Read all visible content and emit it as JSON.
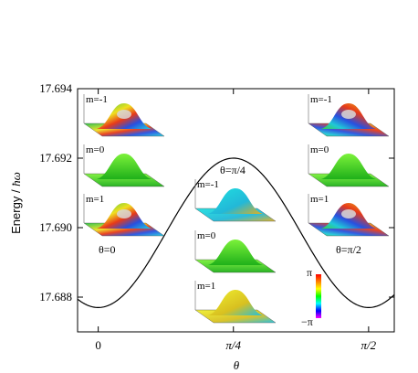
{
  "chart_data": {
    "type": "line",
    "xlabel": "θ",
    "ylabel_text": "Energy / ",
    "ylabel_unit": "ħω",
    "xlim": [
      -0.12,
      1.72
    ],
    "ylim": [
      17.687,
      17.694
    ],
    "x_ticks": [
      {
        "value": 0,
        "label": "0"
      },
      {
        "value": 0.7854,
        "label": "π/4"
      },
      {
        "value": 1.5708,
        "label": "π/2"
      }
    ],
    "y_ticks": [
      {
        "value": 17.688,
        "label": "17.688"
      },
      {
        "value": 17.69,
        "label": "17.690"
      },
      {
        "value": 17.692,
        "label": "17.692"
      },
      {
        "value": 17.694,
        "label": "17.694"
      }
    ],
    "series": [
      {
        "curve": "cosine",
        "x_start": -0.12,
        "x_end": 1.72,
        "min_energy": 17.6877,
        "max_energy": 17.692,
        "points": [
          [
            0,
            17.6877
          ],
          [
            0.3927,
            17.68985
          ],
          [
            0.7854,
            17.692
          ],
          [
            1.1781,
            17.68985
          ],
          [
            1.5708,
            17.6877
          ]
        ]
      }
    ],
    "annotations": {
      "theta0": "θ=0",
      "theta_pi4": "θ=π/4",
      "theta_pi2": "θ=π/2"
    },
    "insets": {
      "left": [
        {
          "label": "m=-1",
          "style": "vortex"
        },
        {
          "label": "m=0",
          "style": "green"
        },
        {
          "label": "m=1",
          "style": "vortex"
        }
      ],
      "mid": [
        {
          "label": "m=-1",
          "style": "cyan"
        },
        {
          "label": "m=0",
          "style": "green"
        },
        {
          "label": "m=1",
          "style": "yellow"
        }
      ],
      "right": [
        {
          "label": "m=-1",
          "style": "vortex"
        },
        {
          "label": "m=0",
          "style": "green"
        },
        {
          "label": "m=1",
          "style": "vortex"
        }
      ]
    },
    "colorbar": {
      "top_label": "π",
      "bottom_label": "−π",
      "colors": [
        "#ff0000",
        "#ff8000",
        "#ffff00",
        "#00ff00",
        "#00ffff",
        "#0000ff",
        "#ff00ff"
      ]
    }
  }
}
